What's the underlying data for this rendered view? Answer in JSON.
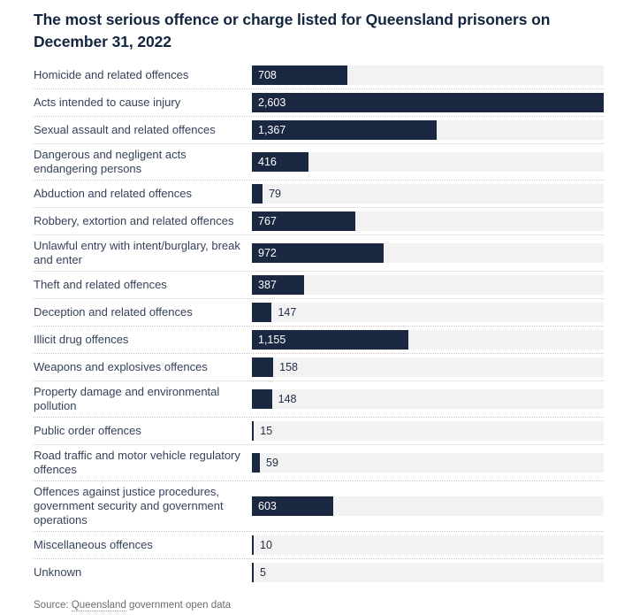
{
  "title": "The most serious offence or charge listed for Queensland prisoners on December 31, 2022",
  "source": {
    "prefix": "Source: ",
    "link_text": "Queensland",
    "suffix": " government open data"
  },
  "colors": {
    "bar": "#1b2841",
    "track": "#f2f2f3",
    "title_text": "#13253f",
    "category_label": "#35425a",
    "value_inside": "#ffffff",
    "value_outside": "#1f2c44",
    "separator": "#c9c9c9",
    "source_text": "#6d6d6d"
  },
  "chart_data": {
    "type": "bar",
    "orientation": "horizontal",
    "title": "The most serious offence or charge listed for Queensland prisoners on December 31, 2022",
    "xlabel": "",
    "ylabel": "",
    "xlim": [
      0,
      2603
    ],
    "grid": false,
    "legend": false,
    "categories": [
      "Homicide and related offences",
      "Acts intended to cause injury",
      "Sexual assault and related offences",
      "Dangerous and negligent acts endangering persons",
      "Abduction and related offences",
      "Robbery, extortion and related offences",
      "Unlawful entry with intent/burglary, break and enter",
      "Theft and related offences",
      "Deception and related offences",
      "Illicit drug offences",
      "Weapons and explosives offences",
      "Property damage and environmental pollution",
      "Public order offences",
      "Road traffic and motor vehicle regulatory offences",
      "Offences against justice procedures, government security and government operations",
      "Miscellaneous offences",
      "Unknown"
    ],
    "values": [
      708,
      2603,
      1367,
      416,
      79,
      767,
      972,
      387,
      147,
      1155,
      158,
      148,
      15,
      59,
      603,
      10,
      5
    ],
    "value_labels": [
      "708",
      "2,603",
      "1,367",
      "416",
      "79",
      "767",
      "972",
      "387",
      "147",
      "1,155",
      "158",
      "148",
      "15",
      "59",
      "603",
      "10",
      "5"
    ],
    "source": "Source: Queensland government open data"
  }
}
